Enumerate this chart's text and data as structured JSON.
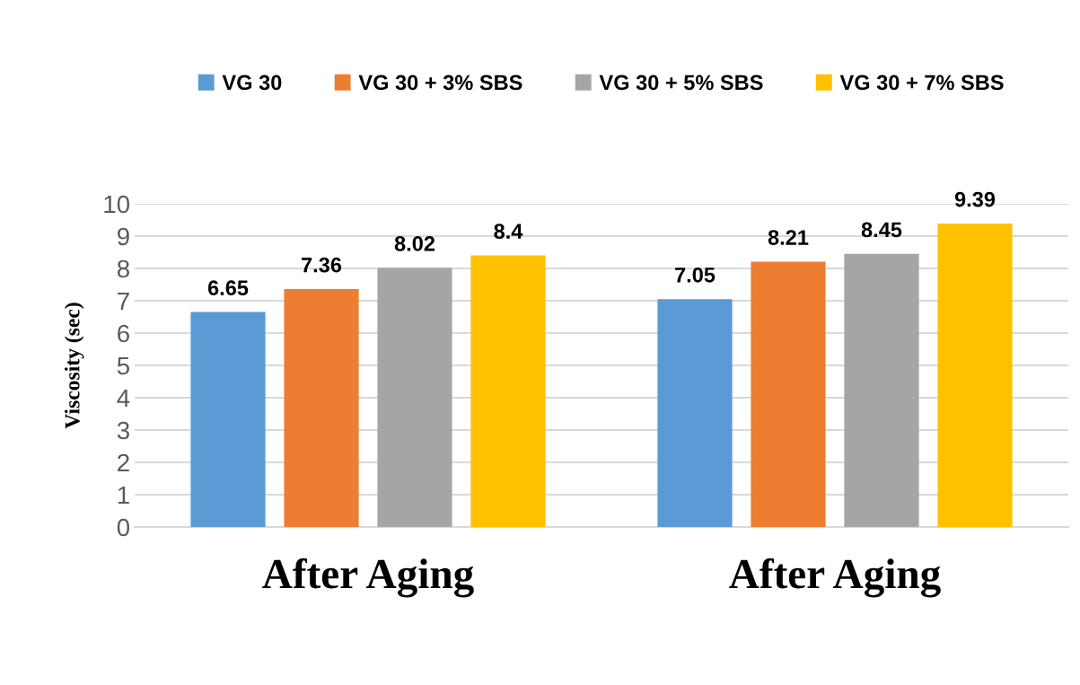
{
  "chart_data": {
    "type": "bar",
    "ylabel": "Viscosity (sec)",
    "categories": [
      "After Aging",
      "After Aging"
    ],
    "series": [
      {
        "name": "VG 30",
        "color": "#5b9bd5",
        "values": [
          6.65,
          7.05
        ]
      },
      {
        "name": "VG 30 + 3% SBS",
        "color": "#ed7d31",
        "values": [
          7.36,
          8.21
        ]
      },
      {
        "name": "VG 30 + 5% SBS",
        "color": "#a5a5a5",
        "values": [
          8.02,
          8.45
        ]
      },
      {
        "name": "VG 30 + 7% SBS",
        "color": "#ffc000",
        "values": [
          8.4,
          9.39
        ]
      }
    ],
    "data_labels": true,
    "ylim": [
      0,
      10
    ],
    "yticks": [
      0,
      1,
      2,
      3,
      4,
      5,
      6,
      7,
      8,
      9,
      10
    ],
    "grid": "y",
    "legend": "top"
  }
}
